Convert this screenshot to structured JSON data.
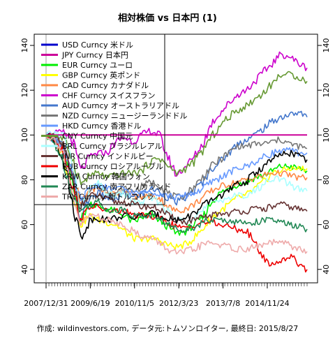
{
  "chart_data": {
    "type": "line",
    "title": "相対株価 vs 日本円 (1)",
    "caption": "作成: wildinvestors.com, データ元:トムソンロイター, 最終日: 2015/8/27",
    "x_start": "2007/12/31",
    "x_end": "2015/8/27",
    "x_tick_labels": [
      "2007/12/31",
      "2009/6/19",
      "2010/11/5",
      "2012/3/23",
      "2013/7/8",
      "2014/11/24"
    ],
    "ylim": [
      34,
      145
    ],
    "y_ticks": [
      40,
      60,
      80,
      100,
      120,
      140
    ],
    "reference_line": 100,
    "grid": false,
    "legend_position": "top-left",
    "series": [
      {
        "name": "USD Curncy 米ドル",
        "color": "#0000cc",
        "values": [
          100,
          100,
          100,
          100,
          100,
          100,
          100,
          100,
          100,
          100,
          100,
          100,
          100,
          100,
          100,
          100,
          100,
          100,
          100,
          100,
          100,
          100,
          100,
          100,
          100,
          100,
          100,
          100,
          100,
          100,
          100
        ]
      },
      {
        "name": "JPY Curncy 日本円",
        "color": "#cc0099",
        "values": [
          100,
          100,
          100,
          100,
          100,
          100,
          100,
          100,
          100,
          100,
          100,
          100,
          100,
          100,
          100,
          100,
          100,
          100,
          100,
          100,
          100,
          100,
          100,
          100,
          100,
          100,
          100,
          100,
          100,
          100,
          100
        ]
      },
      {
        "name": "EUR Curncy ユーロ",
        "color": "#00ee00",
        "values": [
          100,
          97,
          92,
          78,
          62,
          70,
          68,
          67,
          66,
          64,
          61,
          63,
          65,
          62,
          59,
          56,
          57,
          60,
          63,
          70,
          74,
          76,
          78,
          79,
          81,
          82,
          84,
          86,
          86,
          85,
          84
        ]
      },
      {
        "name": "GBP Curncy 英ポンド",
        "color": "#ffff00",
        "values": [
          100,
          97,
          91,
          76,
          60,
          64,
          62,
          61,
          60,
          57,
          54,
          53,
          54,
          53,
          51,
          50,
          51,
          54,
          58,
          63,
          66,
          69,
          72,
          73,
          76,
          79,
          83,
          84,
          85,
          85,
          85
        ]
      },
      {
        "name": "CAD Curncy カナダドル",
        "color": "#ff8844",
        "values": [
          100,
          98,
          95,
          84,
          68,
          76,
          76,
          74,
          74,
          75,
          73,
          72,
          73,
          72,
          68,
          66,
          67,
          69,
          72,
          75,
          77,
          78,
          79,
          80,
          81,
          82,
          83,
          83,
          82,
          81,
          81
        ]
      },
      {
        "name": "CHF Curncy スイスフラン",
        "color": "#cc00cc",
        "values": [
          100,
          101,
          101,
          98,
          84,
          90,
          92,
          92,
          97,
          99,
          97,
          100,
          102,
          100,
          90,
          82,
          86,
          90,
          96,
          105,
          110,
          114,
          118,
          120,
          124,
          128,
          132,
          136,
          135,
          132,
          130
        ]
      },
      {
        "name": "AUD Curncy オーストラリアドル",
        "color": "#4477cc",
        "values": [
          100,
          99,
          95,
          80,
          62,
          72,
          74,
          72,
          71,
          74,
          72,
          74,
          76,
          75,
          72,
          70,
          72,
          75,
          79,
          85,
          88,
          92,
          96,
          98,
          100,
          103,
          106,
          108,
          109,
          110,
          108
        ]
      },
      {
        "name": "NZD Curncy ニュージーランドドル",
        "color": "#777777",
        "values": [
          100,
          98,
          95,
          82,
          68,
          76,
          77,
          75,
          74,
          76,
          75,
          77,
          79,
          78,
          74,
          72,
          73,
          77,
          81,
          86,
          89,
          92,
          95,
          95,
          96,
          96,
          97,
          98,
          96,
          95,
          94
        ]
      },
      {
        "name": "HKD Curncy 香港ドル",
        "color": "#6699ff",
        "values": [
          100,
          98,
          94,
          82,
          70,
          76,
          78,
          76,
          76,
          76,
          74,
          74,
          75,
          74,
          73,
          72,
          73,
          74,
          76,
          79,
          81,
          83,
          85,
          86,
          88,
          90,
          92,
          93,
          93,
          92,
          92
        ]
      },
      {
        "name": "CNY Curncy 中国元",
        "color": "#669933",
        "values": [
          100,
          100,
          98,
          90,
          78,
          82,
          83,
          81,
          82,
          83,
          83,
          84,
          88,
          90,
          86,
          83,
          85,
          88,
          93,
          99,
          104,
          108,
          111,
          113,
          116,
          119,
          123,
          127,
          127,
          126,
          124
        ]
      },
      {
        "name": "BRL Curncy ブラジルレアル",
        "color": "#aaffff",
        "values": [
          100,
          101,
          100,
          88,
          66,
          76,
          78,
          74,
          73,
          74,
          70,
          70,
          72,
          70,
          66,
          62,
          62,
          64,
          66,
          70,
          71,
          72,
          73,
          73,
          75,
          78,
          81,
          80,
          78,
          76,
          75
        ]
      },
      {
        "name": "INR Curncy インドルピー",
        "color": "#663333",
        "values": [
          100,
          99,
          95,
          80,
          68,
          73,
          73,
          71,
          70,
          70,
          69,
          68,
          68,
          67,
          64,
          62,
          61,
          62,
          63,
          64,
          65,
          65,
          66,
          66,
          67,
          67,
          68,
          69,
          68,
          67,
          66
        ]
      },
      {
        "name": "RUB Curncy ロシアルーブル",
        "color": "#ee0000",
        "values": [
          100,
          98,
          93,
          78,
          62,
          68,
          68,
          66,
          66,
          66,
          64,
          64,
          64,
          63,
          61,
          59,
          58,
          60,
          61,
          61,
          60,
          59,
          58,
          57,
          52,
          45,
          42,
          44,
          46,
          43,
          40
        ]
      },
      {
        "name": "KRW Curncy 韓国ウォン",
        "color": "#000000",
        "values": [
          100,
          97,
          90,
          70,
          54,
          62,
          63,
          62,
          63,
          64,
          63,
          64,
          65,
          64,
          63,
          62,
          63,
          65,
          68,
          71,
          73,
          75,
          78,
          79,
          83,
          86,
          89,
          91,
          92,
          91,
          89
        ]
      },
      {
        "name": "ZAR Curncy 南アフリカランド",
        "color": "#228855",
        "values": [
          100,
          96,
          88,
          74,
          66,
          69,
          70,
          67,
          66,
          67,
          64,
          64,
          64,
          63,
          60,
          58,
          58,
          59,
          61,
          62,
          62,
          62,
          61,
          61,
          61,
          62,
          62,
          61,
          60,
          59,
          58
        ]
      },
      {
        "name": "TRY Curncy 新トルコリラ",
        "color": "#eeaaaa",
        "values": [
          100,
          98,
          92,
          72,
          60,
          64,
          64,
          62,
          61,
          60,
          57,
          55,
          54,
          52,
          49,
          47,
          48,
          49,
          51,
          52,
          51,
          50,
          49,
          49,
          50,
          51,
          52,
          52,
          51,
          49,
          48
        ]
      }
    ]
  }
}
